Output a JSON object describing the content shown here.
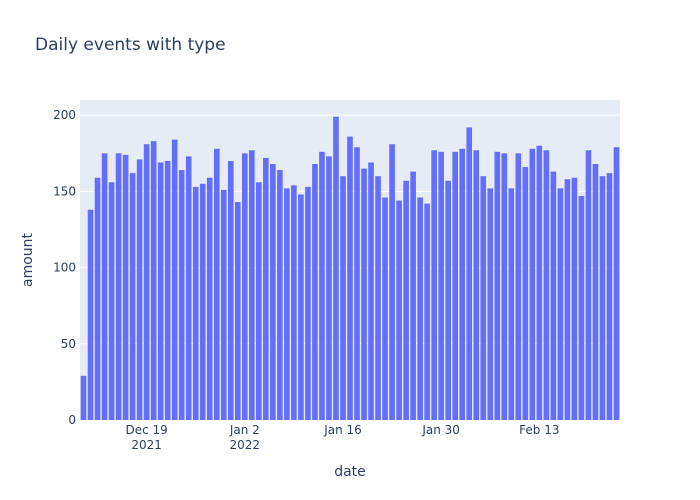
{
  "chart_data": {
    "type": "bar",
    "title": "Daily events with type",
    "xlabel": "date",
    "ylabel": "amount",
    "ylim": [
      0,
      210
    ],
    "y_ticks": [
      0,
      50,
      100,
      150,
      200
    ],
    "grid": true,
    "legend": "none",
    "bar_color": "#636efa",
    "plot_bg": "#e5ecf6",
    "paper_bg": "#ffffff",
    "text_color": "#2a3f5f",
    "x_ticks": [
      {
        "index": 9,
        "label": "Dec 19",
        "sub": "2021"
      },
      {
        "index": 23,
        "label": "Jan 2",
        "sub": "2022"
      },
      {
        "index": 37,
        "label": "Jan 16",
        "sub": ""
      },
      {
        "index": 51,
        "label": "Jan 30",
        "sub": ""
      },
      {
        "index": 65,
        "label": "Feb 13",
        "sub": ""
      }
    ],
    "start_date": "2021-12-10",
    "values": [
      29,
      138,
      159,
      175,
      156,
      175,
      174,
      162,
      171,
      181,
      183,
      169,
      170,
      184,
      164,
      173,
      153,
      155,
      159,
      178,
      151,
      170,
      143,
      175,
      177,
      156,
      172,
      168,
      164,
      152,
      154,
      148,
      153,
      168,
      176,
      173,
      199,
      160,
      186,
      179,
      165,
      169,
      160,
      146,
      181,
      144,
      157,
      163,
      146,
      142,
      177,
      176,
      157,
      176,
      178,
      192,
      177,
      160,
      152,
      176,
      175,
      152,
      175,
      166,
      178,
      180,
      177,
      163,
      152,
      158,
      159,
      147,
      177,
      168,
      160,
      162,
      179
    ]
  }
}
